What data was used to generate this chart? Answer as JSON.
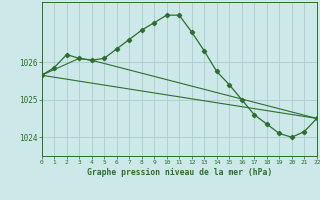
{
  "background_color": "#cce8e8",
  "grid_color": "#aacccc",
  "line_color": "#2d6e2d",
  "title": "Graphe pression niveau de la mer (hPa)",
  "xlim": [
    0,
    22
  ],
  "ylim": [
    1023.5,
    1027.6
  ],
  "yticks": [
    1024,
    1025,
    1026
  ],
  "xticks": [
    0,
    1,
    2,
    3,
    4,
    5,
    6,
    7,
    8,
    9,
    10,
    11,
    12,
    13,
    14,
    15,
    16,
    17,
    18,
    19,
    20,
    21,
    22
  ],
  "series1_x": [
    0,
    1,
    2,
    3,
    4,
    5,
    6,
    7,
    8,
    9,
    10,
    11,
    12,
    13,
    14,
    15,
    16,
    17,
    18,
    19,
    20,
    21,
    22
  ],
  "series1_y": [
    1025.65,
    1025.85,
    1026.2,
    1026.1,
    1026.05,
    1026.1,
    1026.35,
    1026.6,
    1026.85,
    1027.05,
    1027.25,
    1027.25,
    1026.8,
    1026.3,
    1025.75,
    1025.4,
    1025.0,
    1024.6,
    1024.35,
    1024.1,
    1024.0,
    1024.15,
    1024.5
  ],
  "series2_x": [
    0,
    22
  ],
  "series2_y": [
    1025.65,
    1024.5
  ],
  "series3_x": [
    0,
    3,
    4,
    22
  ],
  "series3_y": [
    1025.65,
    1026.1,
    1026.05,
    1024.5
  ]
}
